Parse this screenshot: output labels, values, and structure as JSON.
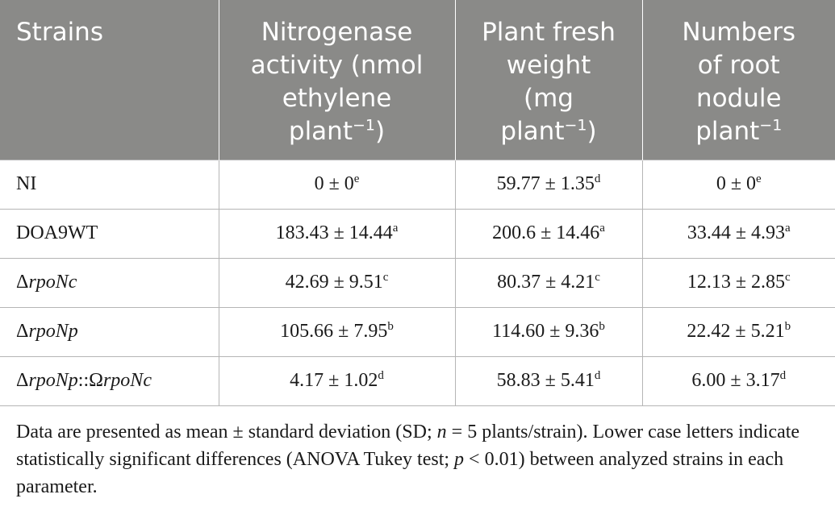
{
  "table": {
    "headers": [
      {
        "lines": [
          "Strains"
        ],
        "sup": ""
      },
      {
        "lines": [
          "Nitrogenase",
          "activity (nmol",
          "ethylene",
          "plant"
        ],
        "sup": "−1",
        "tail": ")"
      },
      {
        "lines": [
          "Plant fresh",
          "weight",
          "(mg",
          "plant"
        ],
        "sup": "−1",
        "tail": ")"
      },
      {
        "lines": [
          "Numbers",
          "of root",
          "nodule",
          "plant"
        ],
        "sup": "−1",
        "tail": ""
      }
    ],
    "rows": [
      {
        "strain": {
          "prefix": "NI",
          "italic": "",
          "mid": "",
          "italic2": ""
        },
        "cells": [
          {
            "value": "0 ± 0",
            "sig": "e"
          },
          {
            "value": "59.77 ± 1.35",
            "sig": "d"
          },
          {
            "value": "0 ± 0",
            "sig": "e"
          }
        ]
      },
      {
        "strain": {
          "prefix": "DOA9WT",
          "italic": "",
          "mid": "",
          "italic2": ""
        },
        "cells": [
          {
            "value": "183.43 ± 14.44",
            "sig": "a"
          },
          {
            "value": "200.6 ± 14.46",
            "sig": "a"
          },
          {
            "value": "33.44 ± 4.93",
            "sig": "a"
          }
        ]
      },
      {
        "strain": {
          "prefix": "Δ",
          "italic": "rpoNc",
          "mid": "",
          "italic2": ""
        },
        "cells": [
          {
            "value": "42.69 ± 9.51",
            "sig": "c"
          },
          {
            "value": "80.37 ± 4.21",
            "sig": "c"
          },
          {
            "value": "12.13 ± 2.85",
            "sig": "c"
          }
        ]
      },
      {
        "strain": {
          "prefix": "Δ",
          "italic": "rpoNp",
          "mid": "",
          "italic2": ""
        },
        "cells": [
          {
            "value": "105.66 ± 7.95",
            "sig": "b"
          },
          {
            "value": "114.60 ± 9.36",
            "sig": "b"
          },
          {
            "value": "22.42 ± 5.21",
            "sig": "b"
          }
        ]
      },
      {
        "strain": {
          "prefix": "Δ",
          "italic": "rpoNp",
          "mid": "::Ω",
          "italic2": "rpoNc"
        },
        "cells": [
          {
            "value": "4.17 ± 1.02",
            "sig": "d"
          },
          {
            "value": "58.83 ± 5.41",
            "sig": "d"
          },
          {
            "value": "6.00 ± 3.17",
            "sig": "d"
          }
        ]
      }
    ]
  },
  "footnote": {
    "part1": "Data are presented as mean ± standard deviation (SD; ",
    "n_var": "n",
    "part2": " = 5 plants/strain). Lower case letters indicate statistically significant differences (ANOVA Tukey test; ",
    "p_var": "p",
    "part3": " < 0.01) between analyzed strains in each parameter."
  }
}
